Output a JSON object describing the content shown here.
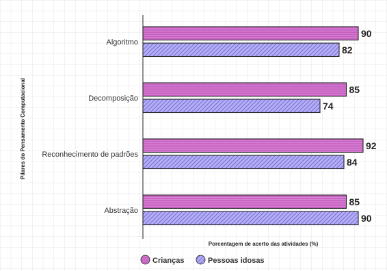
{
  "chart_data": {
    "type": "bar",
    "orientation": "horizontal",
    "categories": [
      "Algoritmo",
      "Decomposição",
      "Reconhecimento de padrões",
      "Abstração"
    ],
    "series": [
      {
        "name": "Crianças",
        "values": [
          90,
          85,
          92,
          85
        ],
        "color": "#c75fc2",
        "pattern": "horizontal-stripes"
      },
      {
        "name": "Pessoas idosas",
        "values": [
          82,
          74,
          84,
          90
        ],
        "color": "#a9a2f5",
        "pattern": "diagonal-hatch"
      }
    ],
    "xlabel": "Porcentagem de acerto das atividades (%)",
    "ylabel": "Pilares do Pensamento Computacional",
    "xlim": [
      0,
      92
    ],
    "grid": true,
    "legend_position": "bottom",
    "data_labels": true
  }
}
